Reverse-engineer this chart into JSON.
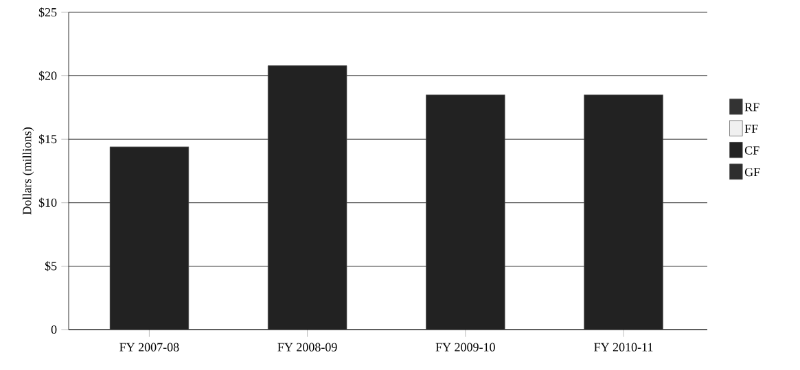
{
  "chart_data": {
    "type": "bar",
    "ylabel": "Dollars (millions)",
    "categories": [
      "FY 2007-08",
      "FY 2008-09",
      "FY 2009-10",
      "FY 2010-11"
    ],
    "series": [
      {
        "name": "GF",
        "color": "#2e2e2e",
        "values": [
          null,
          null,
          null,
          null
        ]
      },
      {
        "name": "CF",
        "color": "#222222",
        "values": [
          14.4,
          20.8,
          18.5,
          18.5
        ]
      },
      {
        "name": "FF",
        "color": "#f0f0f0",
        "values": [
          null,
          null,
          null,
          null
        ]
      },
      {
        "name": "RF",
        "color": "#333333",
        "values": [
          null,
          null,
          null,
          null
        ]
      }
    ],
    "ylim": [
      0,
      25
    ],
    "yticks": [
      0,
      {
        "value": 5,
        "label": "$5"
      },
      {
        "value": 10,
        "label": "$10"
      },
      {
        "value": 15,
        "label": "$15"
      },
      {
        "value": 20,
        "label": "$20"
      },
      {
        "value": 25,
        "label": "$25"
      }
    ],
    "grid": "y",
    "legend": "right"
  }
}
